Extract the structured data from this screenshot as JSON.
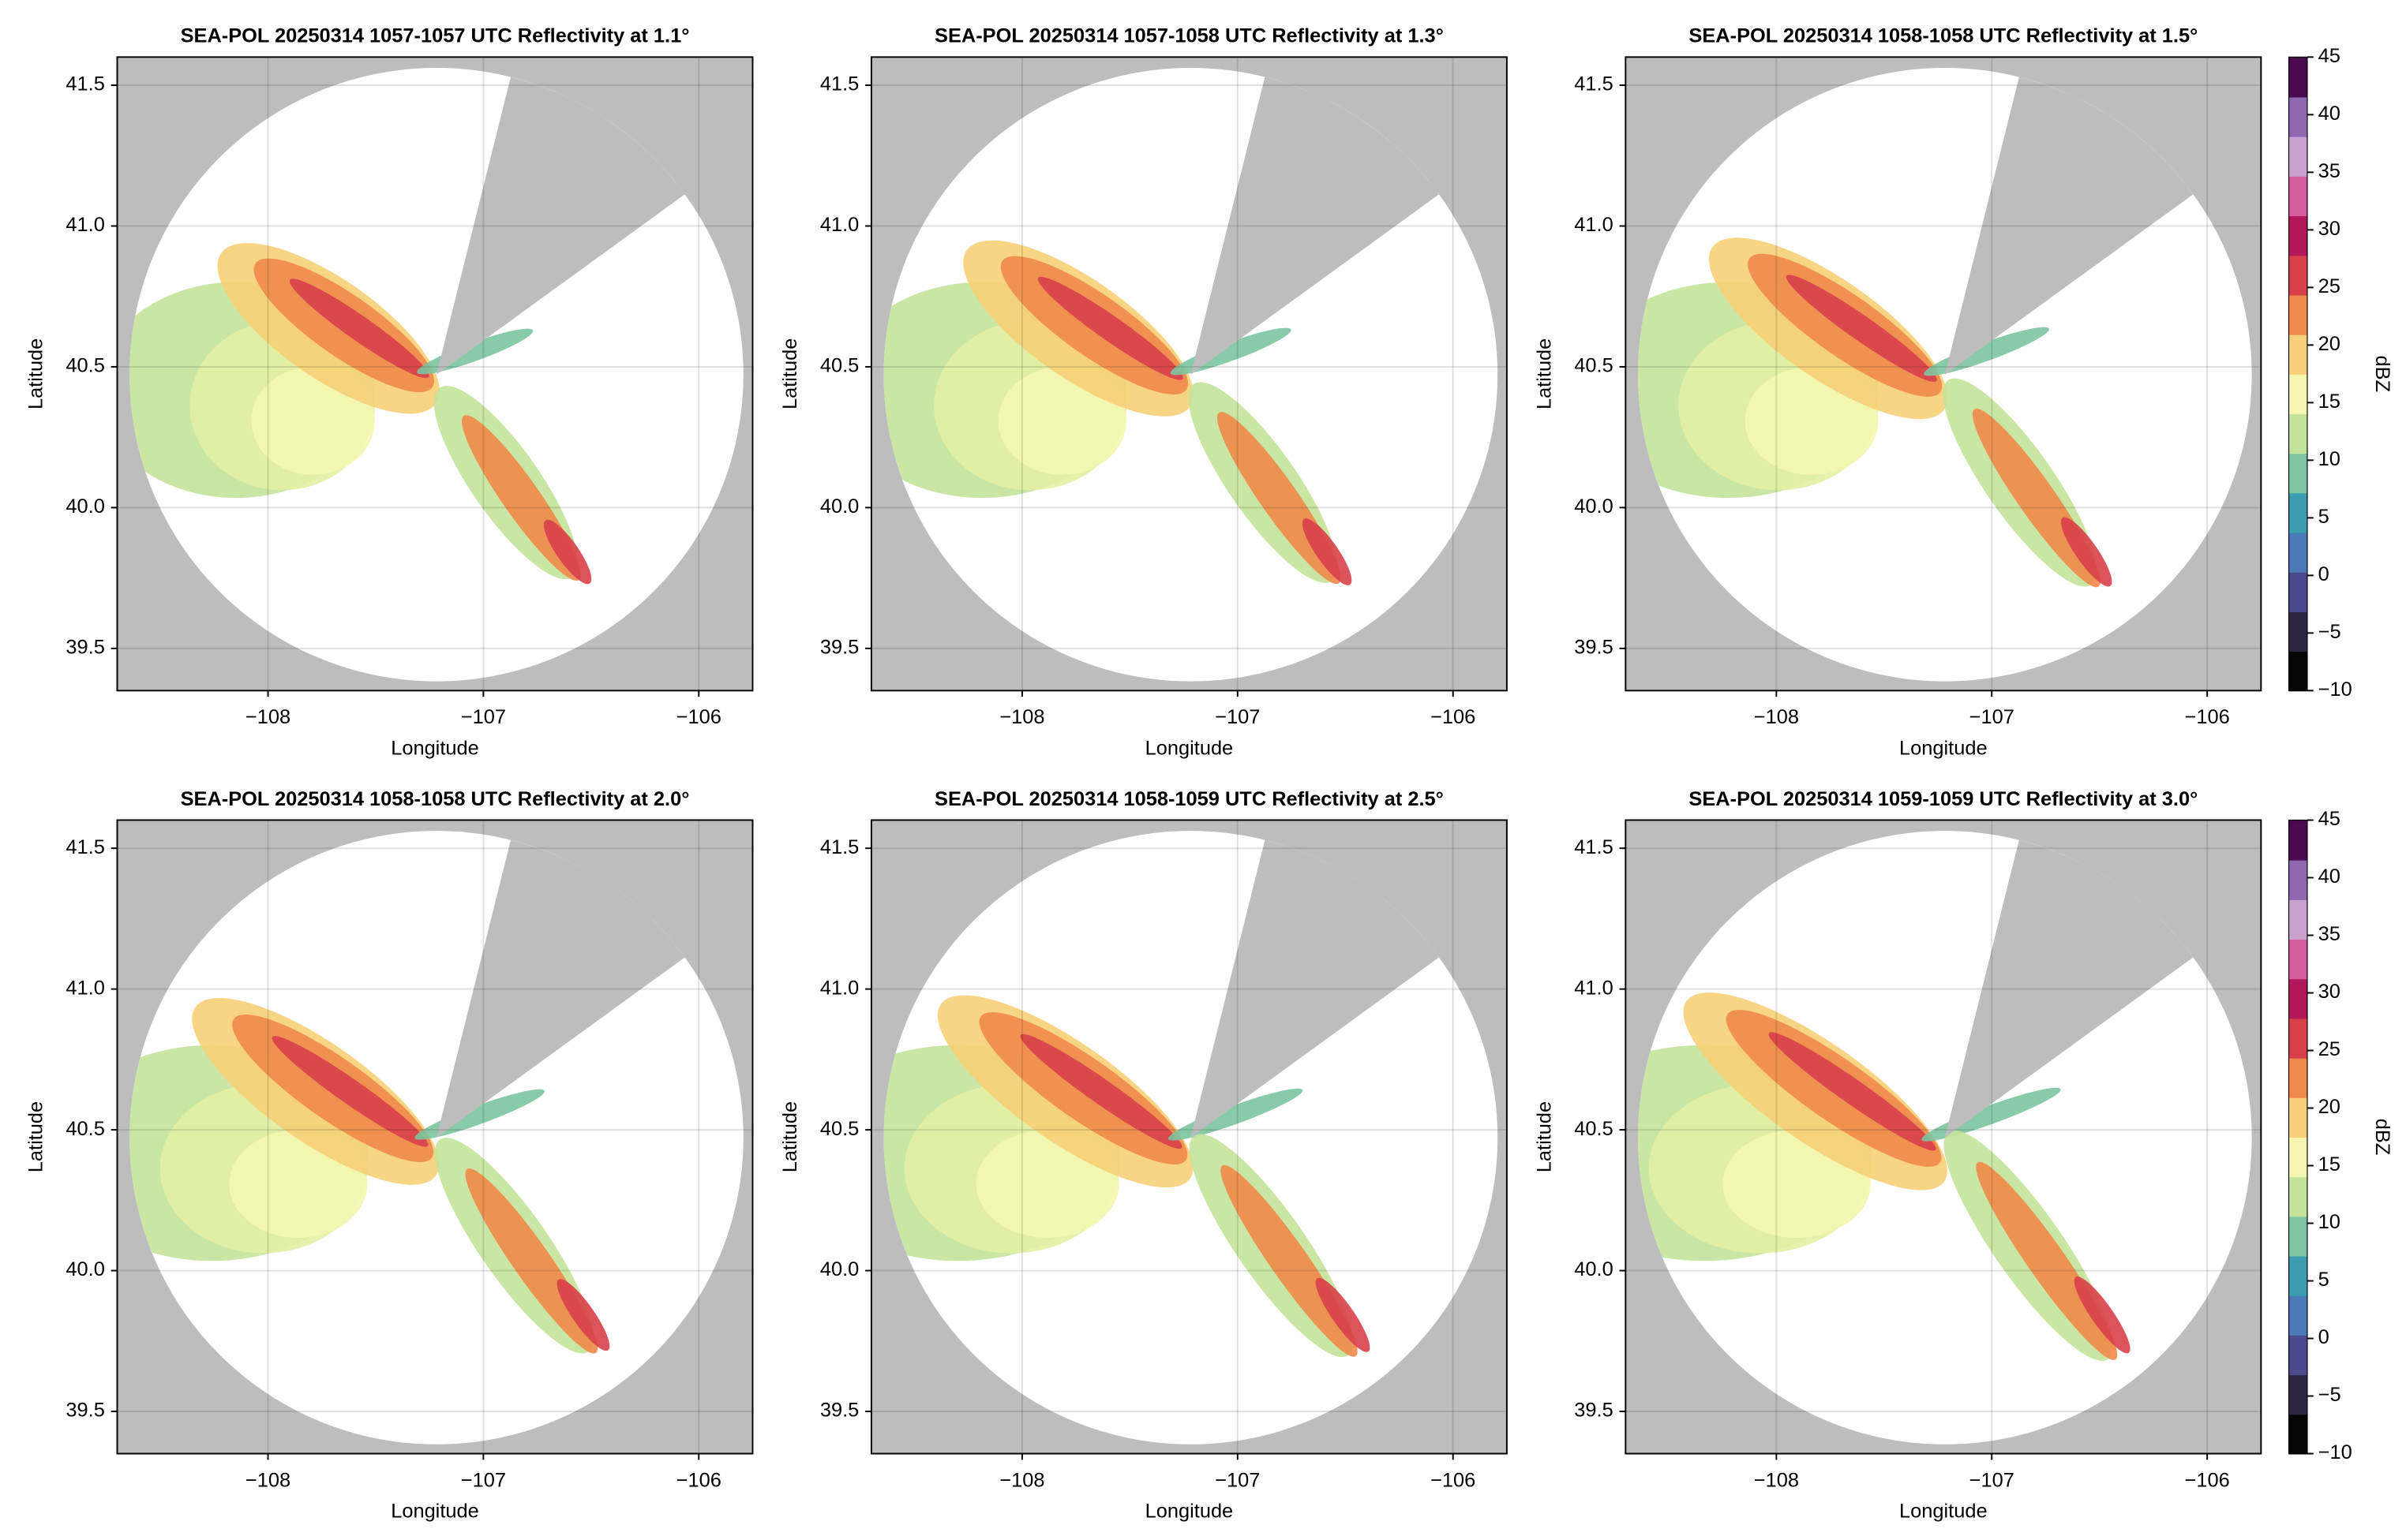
{
  "chart_data": [
    {
      "type": "ppi",
      "title": "SEA-POL 20250314 1057-1057 UTC Reflectivity at 1.1°",
      "xlabel": "Longitude",
      "ylabel": "Latitude",
      "xlim": [
        -108.7,
        -105.75
      ],
      "ylim": [
        39.35,
        41.6
      ],
      "xticks": [
        {
          "value": -108,
          "label": "−108"
        },
        {
          "value": -107,
          "label": "−107"
        },
        {
          "value": -106,
          "label": "−106"
        }
      ],
      "yticks": [
        39.5,
        {
          "value": 40.0,
          "label": "40.0"
        },
        40.5,
        {
          "value": 41.0,
          "label": "41.0"
        },
        41.5
      ],
      "grid": true
    },
    {
      "type": "ppi",
      "title": "SEA-POL 20250314 1057-1058 UTC Reflectivity at 1.3°",
      "xlabel": "Longitude",
      "ylabel": "Latitude",
      "xlim": [
        -108.7,
        -105.75
      ],
      "ylim": [
        39.35,
        41.6
      ],
      "xticks": [
        {
          "value": -108,
          "label": "−108"
        },
        {
          "value": -107,
          "label": "−107"
        },
        {
          "value": -106,
          "label": "−106"
        }
      ],
      "yticks": [
        39.5,
        {
          "value": 40.0,
          "label": "40.0"
        },
        40.5,
        {
          "value": 41.0,
          "label": "41.0"
        },
        41.5
      ],
      "grid": true
    },
    {
      "type": "ppi",
      "title": "SEA-POL 20250314 1058-1058 UTC Reflectivity at 1.5°",
      "xlabel": "Longitude",
      "ylabel": "Latitude",
      "xlim": [
        -108.7,
        -105.75
      ],
      "ylim": [
        39.35,
        41.6
      ],
      "xticks": [
        {
          "value": -108,
          "label": "−108"
        },
        {
          "value": -107,
          "label": "−107"
        },
        {
          "value": -106,
          "label": "−106"
        }
      ],
      "yticks": [
        39.5,
        {
          "value": 40.0,
          "label": "40.0"
        },
        40.5,
        {
          "value": 41.0,
          "label": "41.0"
        },
        41.5
      ],
      "grid": true,
      "colorbar": {
        "label": "dBZ",
        "lim": [
          -10,
          45
        ],
        "ticks": [
          {
            "value": -10,
            "label": "−10"
          },
          {
            "value": -5,
            "label": "−5"
          },
          0,
          5,
          10,
          15,
          20,
          25,
          30,
          35,
          40,
          45
        ],
        "colors": [
          "#050505",
          "#2e2540",
          "#4b4a8a",
          "#4a7ab8",
          "#3a9eb0",
          "#7cc4a0",
          "#c4e39a",
          "#f4f6b0",
          "#f7cf78",
          "#f08a4b",
          "#d8404a",
          "#b0185a",
          "#d65b9e",
          "#c9a1cf",
          "#8f66b0",
          "#4a0a50"
        ]
      }
    },
    {
      "type": "ppi",
      "title": "SEA-POL 20250314 1058-1058 UTC Reflectivity at 2.0°",
      "xlabel": "Longitude",
      "ylabel": "Latitude",
      "xlim": [
        -108.7,
        -105.75
      ],
      "ylim": [
        39.35,
        41.6
      ],
      "xticks": [
        {
          "value": -108,
          "label": "−108"
        },
        {
          "value": -107,
          "label": "−107"
        },
        {
          "value": -106,
          "label": "−106"
        }
      ],
      "yticks": [
        39.5,
        {
          "value": 40.0,
          "label": "40.0"
        },
        40.5,
        {
          "value": 41.0,
          "label": "41.0"
        },
        41.5
      ],
      "grid": true
    },
    {
      "type": "ppi",
      "title": "SEA-POL 20250314 1058-1059 UTC Reflectivity at 2.5°",
      "xlabel": "Longitude",
      "ylabel": "Latitude",
      "xlim": [
        -108.7,
        -105.75
      ],
      "ylim": [
        39.35,
        41.6
      ],
      "xticks": [
        {
          "value": -108,
          "label": "−108"
        },
        {
          "value": -107,
          "label": "−107"
        },
        {
          "value": -106,
          "label": "−106"
        }
      ],
      "yticks": [
        39.5,
        {
          "value": 40.0,
          "label": "40.0"
        },
        40.5,
        {
          "value": 41.0,
          "label": "41.0"
        },
        41.5
      ],
      "grid": true
    },
    {
      "type": "ppi",
      "title": "SEA-POL 20250314 1059-1059 UTC Reflectivity at 3.0°",
      "xlabel": "Longitude",
      "ylabel": "Latitude",
      "xlim": [
        -108.7,
        -105.75
      ],
      "ylim": [
        39.35,
        41.6
      ],
      "xticks": [
        {
          "value": -108,
          "label": "−108"
        },
        {
          "value": -107,
          "label": "−107"
        },
        {
          "value": -106,
          "label": "−106"
        }
      ],
      "yticks": [
        39.5,
        {
          "value": 40.0,
          "label": "40.0"
        },
        40.5,
        {
          "value": 41.0,
          "label": "41.0"
        },
        41.5
      ],
      "grid": true,
      "colorbar": {
        "label": "dBZ",
        "lim": [
          -10,
          45
        ],
        "ticks": [
          {
            "value": -10,
            "label": "−10"
          },
          {
            "value": -5,
            "label": "−5"
          },
          0,
          5,
          10,
          15,
          20,
          25,
          30,
          35,
          40,
          45
        ],
        "colors": [
          "#050505",
          "#2e2540",
          "#4b4a8a",
          "#4a7ab8",
          "#3a9eb0",
          "#7cc4a0",
          "#c4e39a",
          "#f4f6b0",
          "#f7cf78",
          "#f08a4b",
          "#d8404a",
          "#b0185a",
          "#d65b9e",
          "#c9a1cf",
          "#8f66b0",
          "#4a0a50"
        ]
      }
    }
  ]
}
